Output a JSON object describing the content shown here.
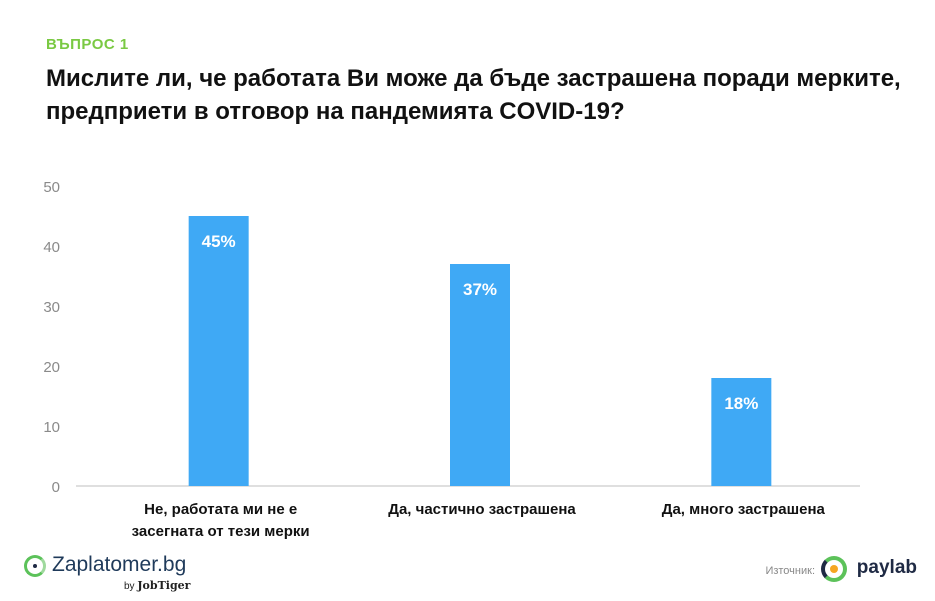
{
  "header": {
    "kicker": "ВЪПРОС 1",
    "title": "Мислите ли, че работата Ви може да бъде застрашена поради мерките, предприети в отговор на пандемията COVID-19?"
  },
  "colors": {
    "kicker": "#7ac943",
    "bar": "#3fa9f5",
    "axis_text": "#8a8a8a",
    "label_text": "#111111",
    "data_label": "#ffffff",
    "axis_line": "#bfbfbf"
  },
  "chart_data": {
    "type": "bar",
    "categories": [
      "Не, работата ми не е засегната от тези мерки",
      "Да, частично застрашена",
      "Да, много застрашена"
    ],
    "category_lines": [
      [
        "Не, работата ми не е",
        "засегната от тези мерки"
      ],
      [
        "Да, частично застрашена"
      ],
      [
        "Да, много застрашена"
      ]
    ],
    "values": [
      45,
      37,
      18
    ],
    "data_labels": [
      "45%",
      "37%",
      "18%"
    ],
    "yticks": [
      0,
      10,
      20,
      30,
      40,
      50
    ],
    "ylim": [
      0,
      50
    ],
    "title": "",
    "xlabel": "",
    "ylabel": "",
    "grid": false,
    "legend": "none"
  },
  "footer": {
    "brand": "Zaplatomer.bg",
    "brand_by": "by",
    "brand_company": "JobTiger",
    "source_label": "Източник:",
    "source_name": "paylab",
    "brand_icon": "zaplatomer-logo-icon",
    "source_icon": "paylab-logo-icon"
  }
}
